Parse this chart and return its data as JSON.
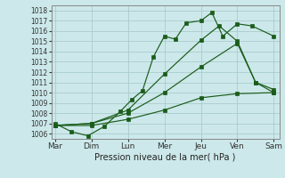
{
  "title": "",
  "xlabel": "Pression niveau de la mer( hPa )",
  "ylabel": "",
  "bg_color": "#cce8ea",
  "grid_color": "#aacccc",
  "line_color": "#1a5c1a",
  "x_labels": [
    "Mar",
    "Dim",
    "Lun",
    "Mer",
    "Jeu",
    "Ven",
    "Sam"
  ],
  "x_ticks": [
    0,
    1,
    2,
    3,
    4,
    5,
    6
  ],
  "ylim": [
    1005.5,
    1018.5
  ],
  "yticks": [
    1006,
    1007,
    1008,
    1009,
    1010,
    1011,
    1012,
    1013,
    1014,
    1015,
    1016,
    1017,
    1018
  ],
  "series": [
    {
      "x": [
        0,
        0.45,
        0.9,
        1.35,
        1.8,
        2.1,
        2.4,
        2.7,
        3.0,
        3.3,
        3.6,
        4.0,
        4.3,
        4.6,
        5.0,
        5.4,
        6.0
      ],
      "y": [
        1007.0,
        1006.2,
        1005.8,
        1006.7,
        1008.2,
        1009.3,
        1010.2,
        1013.5,
        1015.5,
        1015.2,
        1016.8,
        1017.0,
        1017.8,
        1015.5,
        1016.7,
        1016.5,
        1015.5
      ]
    },
    {
      "x": [
        0,
        1.0,
        2.0,
        3.0,
        4.0,
        5.0,
        6.0
      ],
      "y": [
        1006.8,
        1006.8,
        1007.4,
        1008.3,
        1009.5,
        1009.9,
        1010.0
      ]
    },
    {
      "x": [
        0,
        1.0,
        2.0,
        3.0,
        4.0,
        5.0,
        5.5,
        6.0
      ],
      "y": [
        1006.8,
        1007.0,
        1008.0,
        1010.0,
        1012.5,
        1014.8,
        1011.0,
        1010.3
      ]
    },
    {
      "x": [
        0,
        1.0,
        2.0,
        3.0,
        4.0,
        4.5,
        5.0,
        5.5,
        6.0
      ],
      "y": [
        1006.8,
        1007.0,
        1008.3,
        1011.8,
        1015.1,
        1016.5,
        1015.0,
        1011.0,
        1010.0
      ]
    }
  ]
}
